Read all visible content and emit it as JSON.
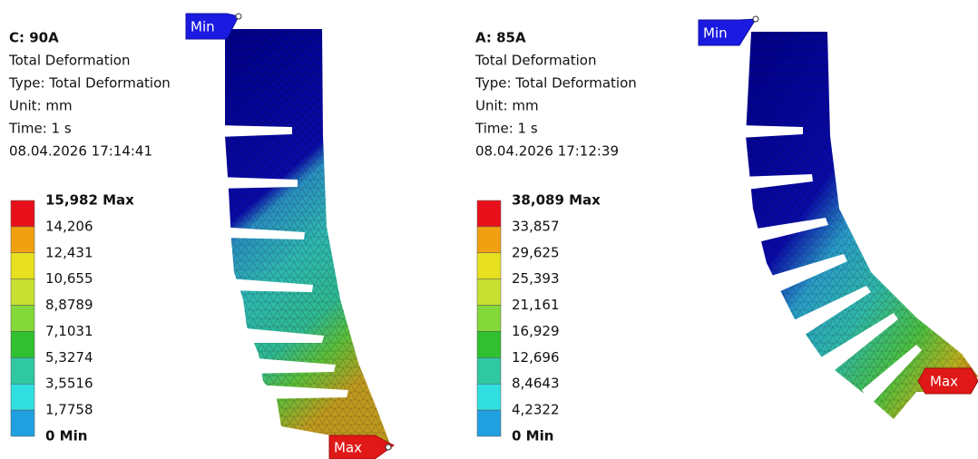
{
  "panels": [
    {
      "title": "C: 90A",
      "lines": [
        "Total Deformation",
        "Type: Total Deformation",
        "Unit: mm",
        "Time: 1 s",
        "08.04.2026 17:14:41"
      ],
      "legend": [
        "15,982 Max",
        "14,206",
        "12,431",
        "10,655",
        "8,8789",
        "7,1031",
        "5,3274",
        "3,5516",
        "1,7758",
        "0 Min"
      ],
      "min_tag": "Min",
      "max_tag": "Max"
    },
    {
      "title": "A: 85A",
      "lines": [
        "Total Deformation",
        "Type: Total Deformation",
        "Unit: mm",
        "Time: 1 s",
        "08.04.2026 17:12:39"
      ],
      "legend": [
        "38,089 Max",
        "33,857",
        "29,625",
        "25,393",
        "21,161",
        "16,929",
        "12,696",
        "8,4643",
        "4,2322",
        "0 Min"
      ],
      "min_tag": "Min",
      "max_tag": "Max"
    }
  ]
}
